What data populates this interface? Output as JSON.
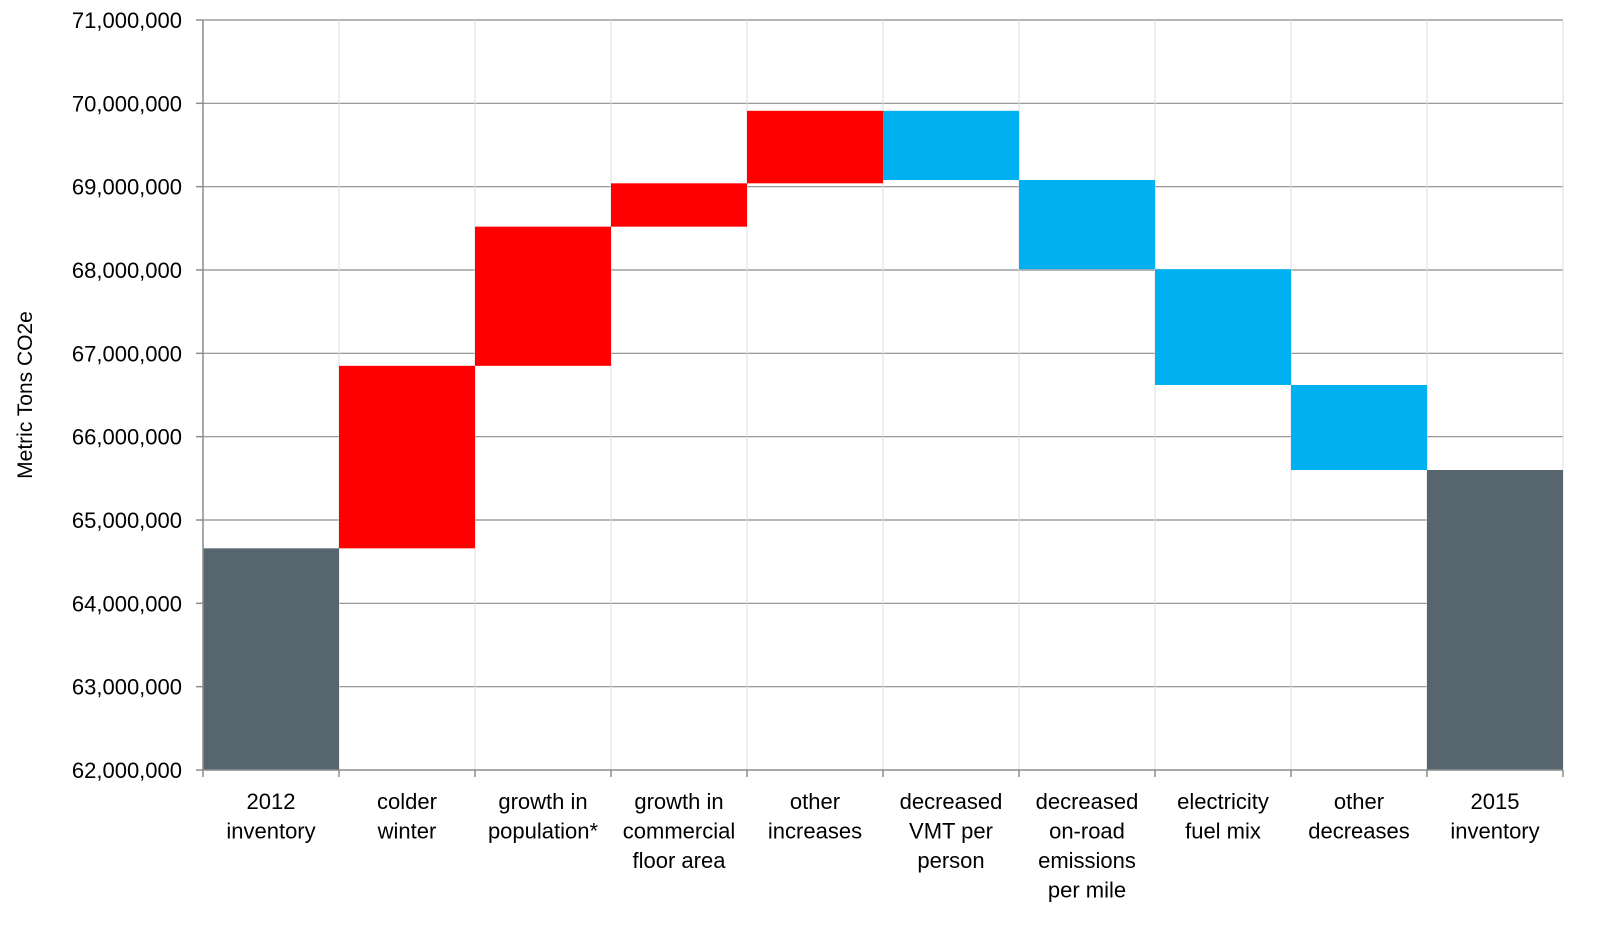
{
  "chart_data": {
    "type": "bar",
    "subtype": "waterfall",
    "ylabel": "Metric Tons CO2e",
    "ylim": [
      62000000,
      71000000
    ],
    "y_ticks": [
      62000000,
      63000000,
      64000000,
      65000000,
      66000000,
      67000000,
      68000000,
      69000000,
      70000000,
      71000000
    ],
    "y_tick_labels": [
      "62,000,000",
      "63,000,000",
      "64,000,000",
      "65,000,000",
      "66,000,000",
      "67,000,000",
      "68,000,000",
      "69,000,000",
      "70,000,000",
      "71,000,000"
    ],
    "grid": true,
    "categories": [
      [
        "2012",
        "inventory"
      ],
      [
        "colder",
        "winter"
      ],
      [
        "growth in",
        "population*"
      ],
      [
        "growth in",
        "commercial",
        "floor area"
      ],
      [
        "other",
        "increases"
      ],
      [
        "decreased",
        "VMT per",
        "person"
      ],
      [
        "decreased",
        "on-road",
        "emissions",
        "per mile"
      ],
      [
        "electricity",
        "fuel mix"
      ],
      [
        "other",
        "decreases"
      ],
      [
        "2015",
        "inventory"
      ]
    ],
    "bars": [
      {
        "kind": "total",
        "low": 62000000,
        "high": 64660000
      },
      {
        "kind": "increase",
        "low": 64660000,
        "high": 66850000
      },
      {
        "kind": "increase",
        "low": 66850000,
        "high": 68520000
      },
      {
        "kind": "increase",
        "low": 68520000,
        "high": 69040000
      },
      {
        "kind": "increase",
        "low": 69040000,
        "high": 69910000
      },
      {
        "kind": "decrease",
        "low": 69080000,
        "high": 69910000
      },
      {
        "kind": "decrease",
        "low": 68010000,
        "high": 69080000
      },
      {
        "kind": "decrease",
        "low": 66620000,
        "high": 68010000
      },
      {
        "kind": "decrease",
        "low": 65600000,
        "high": 66620000
      },
      {
        "kind": "total",
        "low": 62000000,
        "high": 65600000
      }
    ],
    "colors": {
      "total": "#56656e",
      "increase": "#ff0000",
      "decrease": "#00b0f0",
      "grid": "#8c8c8c",
      "axis": "#8c8c8c",
      "divider": "#dcdcdc"
    }
  }
}
